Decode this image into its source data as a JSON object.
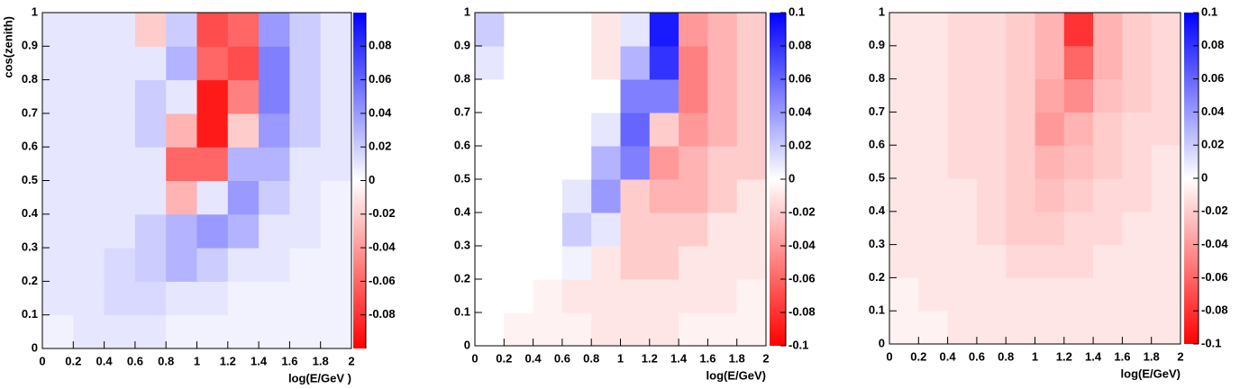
{
  "chart_data": [
    {
      "type": "heatmap",
      "xlabel": "log(E/GeV )",
      "ylabel": "cos(zenith)",
      "xlim": [
        0,
        2
      ],
      "ylim": [
        0,
        1
      ],
      "zlim": [
        -0.1,
        0.1
      ],
      "xticks": [
        0,
        0.2,
        0.4,
        0.6,
        0.8,
        1,
        1.2,
        1.4,
        1.6,
        1.8,
        2
      ],
      "yticks": [
        0,
        0.1,
        0.2,
        0.3,
        0.4,
        0.5,
        0.6,
        0.7,
        0.8,
        0.9,
        1
      ],
      "zticks": [
        -0.08,
        -0.06,
        -0.04,
        -0.02,
        0,
        0.02,
        0.04,
        0.06,
        0.08
      ],
      "positive_color": "#0000ff",
      "negative_color": "#ff0000",
      "xbins": [
        0,
        0.2,
        0.4,
        0.6,
        0.8,
        1,
        1.2,
        1.4,
        1.6,
        1.8,
        2
      ],
      "ybins": [
        0,
        0.1,
        0.2,
        0.3,
        0.4,
        0.5,
        0.6,
        0.7,
        0.8,
        0.9,
        1
      ],
      "z": [
        [
          0.005,
          0.01,
          0.01,
          0.01,
          0.005,
          0.005,
          0.005,
          0.005,
          0.005,
          0.005
        ],
        [
          0.01,
          0.01,
          0.015,
          0.015,
          0.01,
          0.01,
          0.005,
          0.005,
          0.005,
          0.005
        ],
        [
          0.01,
          0.01,
          0.015,
          0.02,
          0.03,
          0.02,
          0.01,
          0.01,
          0.005,
          0.005
        ],
        [
          0.01,
          0.01,
          0.01,
          0.02,
          0.03,
          0.04,
          0.03,
          0.01,
          0.01,
          0.005
        ],
        [
          0.01,
          0.01,
          0.01,
          0.01,
          -0.03,
          0.01,
          0.04,
          0.02,
          0.01,
          0.005
        ],
        [
          0.01,
          0.01,
          0.01,
          0.01,
          -0.06,
          -0.06,
          0.03,
          0.03,
          0.01,
          0.01
        ],
        [
          0.01,
          0.01,
          0.01,
          0.02,
          -0.03,
          -0.09,
          -0.02,
          0.04,
          0.02,
          0.01
        ],
        [
          0.01,
          0.01,
          0.01,
          0.02,
          0.01,
          -0.09,
          -0.05,
          0.05,
          0.02,
          0.01
        ],
        [
          0.01,
          0.01,
          0.01,
          0.01,
          0.03,
          -0.06,
          -0.07,
          0.05,
          0.02,
          0.01
        ],
        [
          0.01,
          0.01,
          0.01,
          -0.02,
          0.02,
          -0.07,
          -0.06,
          0.04,
          0.02,
          0.01
        ]
      ]
    },
    {
      "type": "heatmap",
      "xlabel": "log(E/GeV)",
      "xlim": [
        0,
        2
      ],
      "ylim": [
        0,
        1
      ],
      "zlim": [
        -0.1,
        0.1
      ],
      "xticks": [
        0,
        0.2,
        0.4,
        0.6,
        0.8,
        1,
        1.2,
        1.4,
        1.6,
        1.8,
        2
      ],
      "yticks": [
        0,
        0.1,
        0.2,
        0.3,
        0.4,
        0.5,
        0.6,
        0.7,
        0.8,
        0.9,
        1
      ],
      "zticks": [
        -0.1,
        -0.08,
        -0.06,
        -0.04,
        -0.02,
        0,
        0.02,
        0.04,
        0.06,
        0.08,
        0.1
      ],
      "positive_color": "#0000ff",
      "negative_color": "#ff0000",
      "xbins": [
        0,
        0.2,
        0.4,
        0.6,
        0.8,
        1,
        1.2,
        1.4,
        1.6,
        1.8,
        2
      ],
      "ybins": [
        0,
        0.1,
        0.2,
        0.3,
        0.4,
        0.5,
        0.6,
        0.7,
        0.8,
        0.9,
        1
      ],
      "z": [
        [
          0,
          -0.005,
          -0.005,
          -0.005,
          -0.01,
          -0.01,
          -0.01,
          -0.005,
          -0.005,
          -0.005
        ],
        [
          0,
          0,
          -0.005,
          -0.01,
          -0.01,
          -0.01,
          -0.01,
          -0.01,
          -0.01,
          -0.005
        ],
        [
          0,
          0,
          0,
          0.005,
          -0.01,
          -0.02,
          -0.02,
          -0.01,
          -0.01,
          -0.01
        ],
        [
          0,
          0,
          0,
          0.02,
          0.01,
          -0.02,
          -0.02,
          -0.02,
          -0.01,
          -0.01
        ],
        [
          0,
          0,
          0,
          0.01,
          0.04,
          -0.02,
          -0.03,
          -0.03,
          -0.02,
          -0.01
        ],
        [
          0,
          0,
          0,
          0,
          0.03,
          0.05,
          -0.04,
          -0.03,
          -0.02,
          -0.02
        ],
        [
          0,
          0,
          0,
          0,
          0.01,
          0.06,
          -0.02,
          -0.04,
          -0.03,
          -0.02
        ],
        [
          0,
          0,
          0,
          0,
          0,
          0.05,
          0.05,
          -0.05,
          -0.03,
          -0.02
        ],
        [
          0.01,
          0,
          0,
          0,
          -0.01,
          0.03,
          0.08,
          -0.05,
          -0.03,
          -0.02
        ],
        [
          0.02,
          0,
          0,
          0,
          -0.01,
          0.01,
          0.09,
          -0.04,
          -0.03,
          -0.02
        ]
      ]
    },
    {
      "type": "heatmap",
      "xlabel": "log(E/GeV)",
      "xlim": [
        0,
        2
      ],
      "ylim": [
        0,
        1
      ],
      "zlim": [
        -0.1,
        0.1
      ],
      "xticks": [
        0,
        0.2,
        0.4,
        0.6,
        0.8,
        1,
        1.2,
        1.4,
        1.6,
        1.8,
        2
      ],
      "yticks": [
        0,
        0.1,
        0.2,
        0.3,
        0.4,
        0.5,
        0.6,
        0.7,
        0.8,
        0.9,
        1
      ],
      "zticks": [
        -0.1,
        -0.08,
        -0.06,
        -0.04,
        -0.02,
        0,
        0.02,
        0.04,
        0.06,
        0.08,
        0.1
      ],
      "positive_color": "#0000ff",
      "negative_color": "#ff0000",
      "xbins": [
        0,
        0.2,
        0.4,
        0.6,
        0.8,
        1,
        1.2,
        1.4,
        1.6,
        1.8,
        2
      ],
      "ybins": [
        0,
        0.1,
        0.2,
        0.3,
        0.4,
        0.5,
        0.6,
        0.7,
        0.8,
        0.9,
        1
      ],
      "z": [
        [
          -0.005,
          -0.005,
          -0.01,
          -0.01,
          -0.01,
          -0.01,
          -0.01,
          -0.01,
          -0.01,
          -0.01
        ],
        [
          -0.005,
          -0.01,
          -0.01,
          -0.01,
          -0.01,
          -0.01,
          -0.01,
          -0.01,
          -0.01,
          -0.01
        ],
        [
          -0.01,
          -0.01,
          -0.01,
          -0.01,
          -0.015,
          -0.015,
          -0.015,
          -0.01,
          -0.01,
          -0.01
        ],
        [
          -0.01,
          -0.01,
          -0.01,
          -0.015,
          -0.02,
          -0.02,
          -0.015,
          -0.015,
          -0.01,
          -0.01
        ],
        [
          -0.01,
          -0.01,
          -0.01,
          -0.015,
          -0.02,
          -0.025,
          -0.02,
          -0.015,
          -0.015,
          -0.01
        ],
        [
          -0.01,
          -0.01,
          -0.015,
          -0.015,
          -0.02,
          -0.03,
          -0.025,
          -0.02,
          -0.015,
          -0.01
        ],
        [
          -0.01,
          -0.01,
          -0.015,
          -0.015,
          -0.02,
          -0.04,
          -0.03,
          -0.02,
          -0.015,
          -0.015
        ],
        [
          -0.01,
          -0.01,
          -0.015,
          -0.015,
          -0.02,
          -0.035,
          -0.045,
          -0.025,
          -0.02,
          -0.015
        ],
        [
          -0.01,
          -0.01,
          -0.015,
          -0.015,
          -0.02,
          -0.03,
          -0.06,
          -0.03,
          -0.02,
          -0.015
        ],
        [
          -0.01,
          -0.01,
          -0.015,
          -0.015,
          -0.02,
          -0.03,
          -0.08,
          -0.03,
          -0.02,
          -0.015
        ]
      ]
    }
  ]
}
